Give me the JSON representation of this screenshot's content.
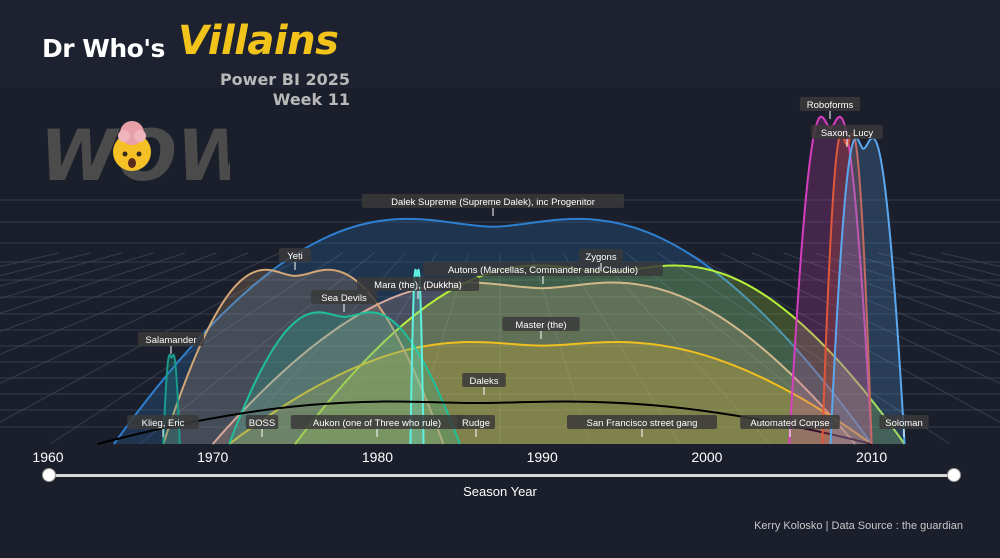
{
  "header": {
    "title_part1": "Dr Who's",
    "title_part2": "Villains",
    "subtitle_line1": "Power BI 2025",
    "subtitle_line2": "Week 11"
  },
  "logo": {
    "text": "WOW",
    "icon": "exploding-head-emoji-icon"
  },
  "colors": {
    "background": "#1b1f2b",
    "title_accent": "#f2c31b",
    "grid": "#4a5266"
  },
  "slider": {
    "min_label": "1960",
    "max_label": "2010",
    "axis_title": "Season Year"
  },
  "credit": "Kerry Kolosko | Data Source : the guardian",
  "chart_data": {
    "type": "area",
    "xlabel": "Season Year",
    "ylabel": "",
    "xlim": [
      1960,
      2015
    ],
    "xticks": [
      1960,
      1970,
      1980,
      1990,
      2000,
      2010
    ],
    "grid": true,
    "note": "Each villain drawn as an arc from first to last appearance year; peak height reflects relative number of appearances (estimated).",
    "series": [
      {
        "name": "Dalek Supreme (Supreme Dalek), inc Progenitor",
        "start": 1964,
        "peak": 1987,
        "end": 2010,
        "height": 53,
        "color": "#2f7fd0"
      },
      {
        "name": "Autons (Marcellas, Commander and Claudio)",
        "start": 1970,
        "peak": 1990,
        "end": 2009,
        "height": 38,
        "color": "#d9a9a0"
      },
      {
        "name": "Zygons",
        "start": 1975,
        "peak": 1994,
        "end": 2012,
        "height": 42,
        "color": "#b6f03a"
      },
      {
        "name": "Master (the)",
        "start": 1971,
        "peak": 1990,
        "end": 2010,
        "height": 24,
        "color": "#f0c020"
      },
      {
        "name": "Yeti",
        "start": 1967,
        "peak": 1975,
        "end": 1984,
        "height": 41,
        "color": "#d3a677"
      },
      {
        "name": "Sea Devils",
        "start": 1971,
        "peak": 1978,
        "end": 1985,
        "height": 31,
        "color": "#1fbf9a"
      },
      {
        "name": "Mara (the), (Dukkha)",
        "start": 1982,
        "peak": 1982.4,
        "end": 1982.8,
        "height": 41,
        "color": "#5ff0e0"
      },
      {
        "name": "Salamander",
        "start": 1967,
        "peak": 1967.5,
        "end": 1968,
        "height": 21,
        "color": "#1a9a8a"
      },
      {
        "name": "Daleks",
        "start": 1963,
        "peak": 1986,
        "end": 2010,
        "height": 10,
        "color": "#000000"
      },
      {
        "name": "Roboforms",
        "start": 2005,
        "peak": 2007.5,
        "end": 2010,
        "height": 77,
        "color": "#d63ec0"
      },
      {
        "name": "Saxon, Lucy",
        "start": 2007,
        "peak": 2008.5,
        "end": 2010,
        "height": 73,
        "color": "#e0583a"
      },
      {
        "name": "Soloman",
        "start": 2007.5,
        "peak": 2009.5,
        "end": 2012,
        "height": 72,
        "color": "#5aa8f0"
      }
    ],
    "annotations": [
      "Dalek Supreme (Supreme Dalek), inc Progenitor",
      "Autons (Marcellas, Commander and Claudio)",
      "Zygons",
      "Master (the)",
      "Yeti",
      "Sea Devils",
      "Mara (the), (Dukkha)",
      "Salamander",
      "Daleks",
      "Roboforms",
      "Saxon, Lucy",
      "Klieg, Eric",
      "BOSS",
      "Aukon (one of Three who rule)",
      "Rudge",
      "San Francisco street gang",
      "Automated Corpse",
      "Soloman"
    ]
  }
}
